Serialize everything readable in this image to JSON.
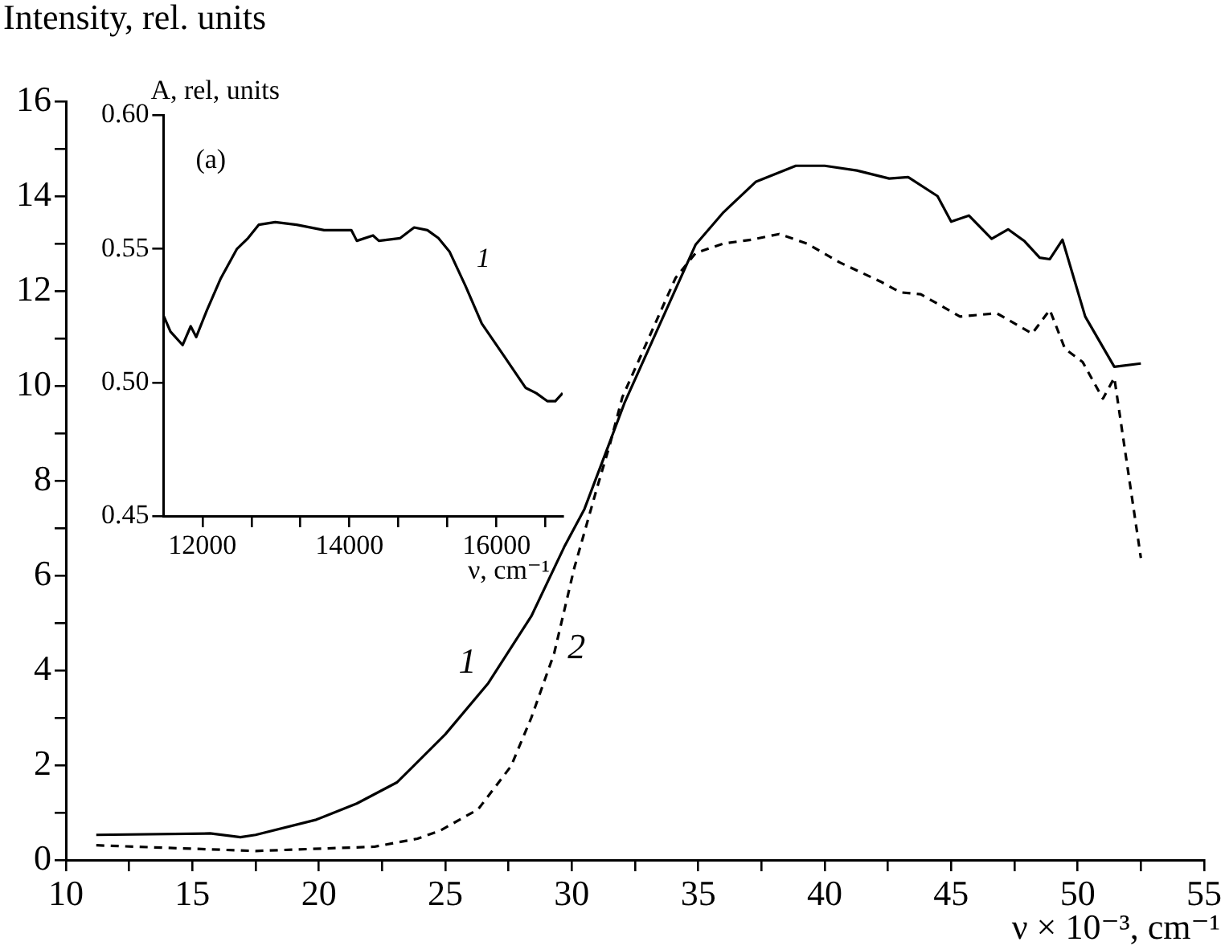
{
  "chart_data": [
    {
      "type": "line",
      "ylabel": "Intensity, rel. units",
      "xlabel": "ν × 10⁻³, cm⁻¹",
      "xlim": [
        10,
        55
      ],
      "ylim": [
        0,
        16
      ],
      "xticks": [
        10,
        {
          "value": 12.5,
          "label": null
        },
        15,
        {
          "value": 17.5,
          "label": null
        },
        20,
        {
          "value": 22.5,
          "label": null
        },
        25,
        {
          "value": 27.5,
          "label": null
        },
        30,
        {
          "value": 32.5,
          "label": null
        },
        35,
        {
          "value": 37.5,
          "label": null
        },
        40,
        {
          "value": 42.5,
          "label": null
        },
        45,
        {
          "value": 47.5,
          "label": null
        },
        50,
        {
          "value": 52.5,
          "label": null
        },
        55
      ],
      "yticks": [
        0,
        {
          "value": 1,
          "label": null
        },
        2,
        {
          "value": 3,
          "label": null
        },
        4,
        {
          "value": 5,
          "label": null
        },
        6,
        {
          "value": 7,
          "label": null
        },
        8,
        {
          "value": 9,
          "label": null
        },
        10,
        {
          "value": 11,
          "label": null
        },
        12,
        {
          "value": 13,
          "label": null
        },
        14,
        {
          "value": 15,
          "label": null
        },
        16
      ],
      "grid": false,
      "marker": "none",
      "series": [
        {
          "name": "1",
          "color": "#000000",
          "line_style": "solid",
          "x": [
            11.2,
            15.7,
            16.9,
            17.5,
            19.9,
            21.5,
            23.1,
            25.0,
            26.7,
            28.4,
            29.7,
            30.5,
            31.55,
            32.1,
            34.9,
            36.0,
            37.27,
            38.86,
            40.0,
            41.27,
            42.55,
            43.3,
            44.46,
            45.0,
            45.7,
            46.6,
            47.25,
            47.9,
            48.5,
            48.9,
            49.4,
            50.3,
            51.45,
            52.5
          ],
          "values": [
            0.53,
            0.56,
            0.48,
            0.53,
            0.85,
            1.19,
            1.64,
            2.65,
            3.73,
            5.14,
            6.6,
            7.4,
            8.88,
            9.66,
            12.98,
            13.66,
            14.3,
            14.64,
            14.64,
            14.54,
            14.37,
            14.4,
            14.0,
            13.46,
            13.59,
            13.1,
            13.3,
            13.05,
            12.7,
            12.67,
            13.08,
            11.46,
            10.4,
            10.47
          ]
        },
        {
          "name": "2",
          "color": "#000000",
          "line_style": "dashed",
          "x": [
            11.2,
            17.5,
            22.2,
            23.9,
            24.8,
            26.3,
            27.6,
            28.4,
            29.3,
            30.1,
            31.0,
            31.5,
            32.0,
            34.1,
            34.9,
            36.0,
            37.1,
            38.2,
            39.3,
            40.6,
            42.2,
            43.0,
            43.8,
            45.35,
            46.8,
            48.2,
            48.9,
            49.5,
            50.2,
            51.0,
            51.45,
            52.5
          ],
          "values": [
            0.31,
            0.19,
            0.28,
            0.45,
            0.62,
            1.07,
            1.98,
            3.0,
            4.35,
            6.16,
            7.85,
            8.75,
            9.76,
            12.27,
            12.8,
            13.0,
            13.08,
            13.2,
            13.0,
            12.6,
            12.2,
            11.97,
            11.93,
            11.46,
            11.53,
            11.1,
            11.6,
            10.78,
            10.5,
            9.73,
            10.17,
            6.37
          ]
        }
      ],
      "legend": false
    },
    {
      "type": "line",
      "ylabel": "A, rel, units",
      "xlabel": "ν, cm⁻¹",
      "xlim": [
        11470,
        16900
      ],
      "ylim": [
        0.45,
        0.6
      ],
      "xticks": [
        12000,
        {
          "value": 12667,
          "label": null
        },
        {
          "value": 13333,
          "label": null
        },
        14000,
        {
          "value": 14667,
          "label": null
        },
        {
          "value": 15333,
          "label": null
        },
        16000,
        {
          "value": 16667,
          "label": null
        }
      ],
      "yticks": [
        {
          "value": 0.45,
          "label": "0.45"
        },
        {
          "value": 0.5,
          "label": "0.50"
        },
        {
          "value": 0.55,
          "label": "0.55"
        },
        {
          "value": 0.6,
          "label": "0.60"
        }
      ],
      "grid": false,
      "legend": false,
      "marker": "none",
      "series": [
        {
          "name": "1",
          "color": "#000000",
          "line_style": "solid",
          "x": [
            11470,
            11565,
            11730,
            11840,
            11915,
            12060,
            12250,
            12470,
            12620,
            12765,
            12990,
            13280,
            13655,
            14025,
            14100,
            14320,
            14400,
            14690,
            14880,
            15060,
            15210,
            15360,
            15580,
            15800,
            16100,
            16395,
            16540,
            16690,
            16800,
            16900
          ],
          "values": [
            0.525,
            0.519,
            0.514,
            0.521,
            0.517,
            0.527,
            0.539,
            0.55,
            0.554,
            0.559,
            0.56,
            0.559,
            0.557,
            0.557,
            0.553,
            0.555,
            0.553,
            0.554,
            0.558,
            0.557,
            0.554,
            0.549,
            0.536,
            0.522,
            0.51,
            0.498,
            0.496,
            0.493,
            0.493,
            0.496
          ]
        }
      ],
      "annotations": [
        "(a)"
      ]
    }
  ]
}
